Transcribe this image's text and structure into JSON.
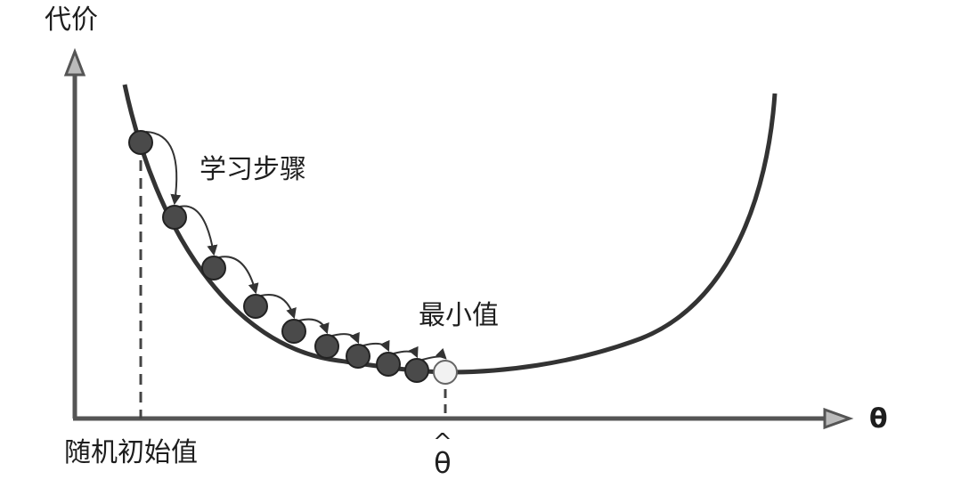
{
  "axes": {
    "y_label": "代价",
    "x_label": "θ",
    "axis_color": "#555555"
  },
  "annotations": {
    "learning_step": "学习步骤",
    "minimum": "最小值",
    "random_initial": "随机初始值",
    "theta_hat_hat": "^",
    "theta_hat_symbol": "θ"
  },
  "curve": {
    "color": "#333333"
  },
  "points": {
    "count_steps": 9,
    "step_fill": "#4a4a4a",
    "minimum_fill": "#f2f2f2"
  }
}
